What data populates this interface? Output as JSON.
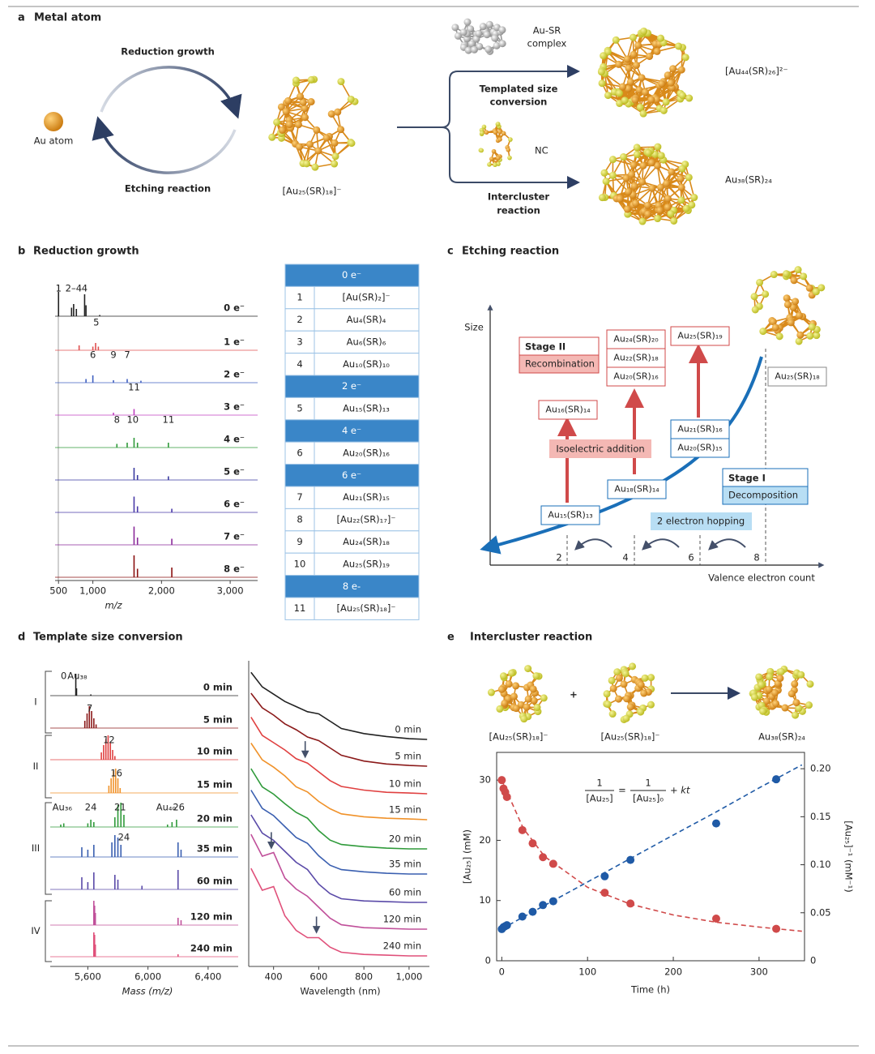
{
  "figure": {
    "a": {
      "label": "a",
      "title": "Metal atom",
      "reduction": "Reduction growth",
      "etching": "Etching reaction",
      "au_atom": "Au atom",
      "au25": "[Au₂₅(SR)₁₈]⁻",
      "complex": [
        "Au-SR",
        "complex"
      ],
      "templated": [
        "Templated size",
        "conversion"
      ],
      "nc": "NC",
      "intercluster": [
        "Intercluster",
        "reaction"
      ],
      "au44": "[Au₄₄(SR)₂₆]²⁻",
      "au38": "Au₃₈(SR)₂₄"
    },
    "b": {
      "label": "b",
      "title": "Reduction growth",
      "table": [
        {
          "header": "0 e⁻",
          "rows": [
            [
              "1",
              "[Au(SR)₂]⁻"
            ],
            [
              "2",
              "Au₄(SR)₄"
            ],
            [
              "3",
              "Au₆(SR)₆"
            ],
            [
              "4",
              "Au₁₀(SR)₁₀"
            ]
          ]
        },
        {
          "header": "2 e⁻",
          "rows": [
            [
              "5",
              "Au₁₅(SR)₁₃"
            ]
          ]
        },
        {
          "header": "4 e⁻",
          "rows": [
            [
              "6",
              "Au₂₀(SR)₁₆"
            ]
          ]
        },
        {
          "header": "6 e⁻",
          "rows": [
            [
              "7",
              "Au₂₁(SR)₁₅"
            ],
            [
              "8",
              "[Au₂₂(SR)₁₇]⁻"
            ],
            [
              "9",
              "Au₂₄(SR)₁₈"
            ],
            [
              "10",
              "Au₂₅(SR)₁₉"
            ]
          ]
        },
        {
          "header": "8 e-",
          "rows": [
            [
              "11",
              "[Au₂₅(SR)₁₈]⁻"
            ]
          ]
        }
      ]
    },
    "c": {
      "label": "c",
      "title": "Etching reaction",
      "ylabel": "Size",
      "xlabel": "Valence electron count",
      "xticks": [
        "2",
        "4",
        "6",
        "8"
      ],
      "stage2": "Stage II",
      "recombination": "Recombination",
      "stage1": "Stage I",
      "decomposition": "Decomposition",
      "isoelectric": "Isoelectric addition",
      "hopping": "2 electron hopping",
      "boxes": [
        {
          "lines": [
            "Au₁₅(SR)₁₃"
          ],
          "kind": "blue"
        },
        {
          "lines": [
            "Au₁₆(SR)₁₄"
          ],
          "kind": "red"
        },
        {
          "lines": [
            "Au₁₈(SR)₁₄"
          ],
          "kind": "blue"
        },
        {
          "lines": [
            "Au₂₄(SR)₂₀",
            "Au₂₂(SR)₁₈",
            "Au₂₀(SR)₁₆"
          ],
          "kind": "red"
        },
        {
          "lines": [
            "Au₂₅(SR)₁₉"
          ],
          "kind": "red"
        },
        {
          "lines": [
            "Au₂₁(SR)₁₆",
            "Au₂₀(SR)₁₅"
          ],
          "kind": "blue"
        },
        {
          "lines": [
            "Au₂₅(SR)₁₈"
          ],
          "kind": "grey"
        }
      ]
    },
    "d": {
      "label": "d",
      "title": "Template size conversion",
      "groups": [
        "I",
        "II",
        "III",
        "IV"
      ]
    },
    "e": {
      "label": "e",
      "title": "Intercluster reaction",
      "molecules": [
        "[Au₂₅(SR)₁₈]⁻",
        "[Au₂₅(SR)₁₈]⁻",
        "Au₃₈(SR)₂₄"
      ],
      "plus": "+",
      "equation": {
        "num1": "1",
        "den1": "[Au₂₅]",
        "eq": "=",
        "num2": "1",
        "den2": "[Au₂₅]₀",
        "tail": "+ kt"
      }
    }
  },
  "chart_data": [
    {
      "type": "stacked-spectra",
      "xlabel": "m/z",
      "xlim": [
        450,
        3400
      ],
      "xticks": [
        500,
        {
          "value": 1000,
          "label": "1,000"
        },
        {
          "value": 2000,
          "label": "2,000"
        },
        {
          "value": 3000,
          "label": "3,000"
        }
      ],
      "series": [
        {
          "name": "0 e⁻",
          "color": "#222222",
          "x": [
            500,
            690,
            720,
            760,
            880,
            900,
            1100
          ],
          "values": [
            1.0,
            0.35,
            0.5,
            0.3,
            0.9,
            0.45,
            0.05
          ],
          "annotations": [
            {
              "text": "1",
              "x": 500
            },
            {
              "text": "2–4",
              "x": 720
            },
            {
              "text": "4",
              "x": 880
            }
          ]
        },
        {
          "name": "1 e⁻",
          "color": "#e05050",
          "x": [
            800,
            1000,
            1040,
            1080
          ],
          "values": [
            0.2,
            0.15,
            0.3,
            0.15
          ],
          "annotations": [
            {
              "text": "5",
              "x": 1050
            }
          ]
        },
        {
          "name": "2 e⁻",
          "color": "#4060c0",
          "x": [
            900,
            1000,
            1300,
            1500,
            1700
          ],
          "values": [
            0.15,
            0.3,
            0.1,
            0.15,
            0.08
          ],
          "annotations": [
            {
              "text": "6",
              "x": 1000
            },
            {
              "text": "9",
              "x": 1300
            },
            {
              "text": "7",
              "x": 1500
            }
          ]
        },
        {
          "name": "3 e⁻",
          "color": "#c040c0",
          "x": [
            1300,
            1600
          ],
          "values": [
            0.1,
            0.25
          ],
          "annotations": [
            {
              "text": "11",
              "x": 1600
            }
          ]
        },
        {
          "name": "4 e⁻",
          "color": "#2f9a3a",
          "x": [
            1350,
            1500,
            1600,
            1650,
            2100
          ],
          "values": [
            0.15,
            0.2,
            0.4,
            0.2,
            0.2
          ],
          "annotations": [
            {
              "text": "8",
              "x": 1350
            },
            {
              "text": "10",
              "x": 1580
            },
            {
              "text": "11",
              "x": 2100
            }
          ]
        },
        {
          "name": "5 e⁻",
          "color": "#3a3aa0",
          "x": [
            1600,
            1650,
            2100
          ],
          "values": [
            0.5,
            0.2,
            0.15
          ]
        },
        {
          "name": "6 e⁻",
          "color": "#4a3aa8",
          "x": [
            1600,
            1650,
            2150
          ],
          "values": [
            0.65,
            0.25,
            0.15
          ]
        },
        {
          "name": "7 e⁻",
          "color": "#8a2a9a",
          "x": [
            1600,
            1650,
            2150
          ],
          "values": [
            0.75,
            0.3,
            0.25
          ]
        },
        {
          "name": "8 e⁻",
          "color": "#8a1010",
          "x": [
            1600,
            1650,
            2150
          ],
          "values": [
            0.9,
            0.35,
            0.4
          ]
        }
      ]
    },
    {
      "type": "stacked-spectra",
      "xlabel": "Mass (m/z)",
      "xlim": [
        5350,
        6600
      ],
      "xticks": [
        {
          "value": 5600,
          "label": "5,600"
        },
        {
          "value": 6000,
          "label": "6,000"
        },
        {
          "value": 6400,
          "label": "6,400"
        }
      ],
      "series": [
        {
          "name": "0 min",
          "color": "#222222",
          "x": [
            5520,
            5525,
            5620
          ],
          "values": [
            0.9,
            0.3,
            0.05
          ],
          "annotations": [
            {
              "text": "0",
              "x": 5440
            },
            {
              "text": "Au₃₈",
              "x": 5530
            }
          ]
        },
        {
          "name": "5 min",
          "color": "#8b1a1a",
          "x": [
            5580,
            5595,
            5610,
            5625,
            5640,
            5655
          ],
          "values": [
            0.3,
            0.6,
            0.9,
            0.7,
            0.4,
            0.15
          ],
          "annotations": [
            {
              "text": "7",
              "x": 5612
            }
          ]
        },
        {
          "name": "10 min",
          "color": "#e04040",
          "x": [
            5690,
            5705,
            5720,
            5735,
            5750,
            5765,
            5780
          ],
          "values": [
            0.3,
            0.6,
            0.85,
            1.0,
            0.7,
            0.4,
            0.15
          ],
          "annotations": [
            {
              "text": "12",
              "x": 5740
            }
          ]
        },
        {
          "name": "15 min",
          "color": "#f0922a",
          "x": [
            5740,
            5755,
            5770,
            5785,
            5800,
            5815
          ],
          "values": [
            0.3,
            0.6,
            0.9,
            1.0,
            0.6,
            0.2
          ],
          "annotations": [
            {
              "text": "16",
              "x": 5790
            }
          ]
        },
        {
          "name": "20 min",
          "color": "#2f9a3a",
          "x": [
            5420,
            5440,
            5600,
            5620,
            5640,
            5780,
            5800,
            5820,
            5840,
            6130,
            6160,
            6190
          ],
          "values": [
            0.1,
            0.15,
            0.15,
            0.3,
            0.2,
            0.4,
            0.9,
            1.0,
            0.5,
            0.1,
            0.2,
            0.3
          ],
          "annotations": [
            {
              "text": "Au₃₆",
              "x": 5430
            },
            {
              "text": "24",
              "x": 5620
            },
            {
              "text": "21",
              "x": 5815
            },
            {
              "text": "Au₄₀",
              "x": 6120
            },
            {
              "text": "26",
              "x": 6205
            }
          ]
        },
        {
          "name": "35 min",
          "color": "#3a5fb0",
          "x": [
            5560,
            5600,
            5640,
            5760,
            5780,
            5800,
            5820,
            6200,
            6220
          ],
          "values": [
            0.4,
            0.3,
            0.5,
            0.6,
            0.9,
            0.8,
            0.5,
            0.6,
            0.3
          ],
          "annotations": [
            {
              "text": "24",
              "x": 5840
            }
          ]
        },
        {
          "name": "60 min",
          "color": "#5a4aa8",
          "x": [
            5560,
            5600,
            5640,
            5780,
            5800,
            5960,
            6200
          ],
          "values": [
            0.5,
            0.3,
            0.7,
            0.6,
            0.4,
            0.15,
            0.8
          ]
        },
        {
          "name": "120 min",
          "color": "#c0509a",
          "x": [
            5640,
            5645,
            5650,
            6200,
            6220
          ],
          "values": [
            1.0,
            0.8,
            0.5,
            0.3,
            0.2
          ]
        },
        {
          "name": "240 min",
          "color": "#e0507a",
          "x": [
            5640,
            5645,
            5650,
            6200
          ],
          "values": [
            1.0,
            0.9,
            0.5,
            0.1
          ]
        }
      ]
    },
    {
      "type": "stacked-lines",
      "xlabel": "Wavelength (nm)",
      "xlim": [
        290,
        1090
      ],
      "xticks": [
        400,
        600,
        800,
        {
          "value": 1000,
          "label": "1,000"
        }
      ],
      "x": [
        300,
        350,
        400,
        450,
        500,
        550,
        600,
        650,
        700,
        800,
        900,
        1000,
        1080
      ],
      "series": [
        {
          "name": "0 min",
          "color": "#222222",
          "values": [
            0.92,
            0.72,
            0.62,
            0.52,
            0.45,
            0.38,
            0.35,
            0.25,
            0.15,
            0.08,
            0.04,
            0.01,
            0
          ]
        },
        {
          "name": "5 min",
          "color": "#8b1a1a",
          "values": [
            1.0,
            0.8,
            0.7,
            0.58,
            0.5,
            0.4,
            0.35,
            0.25,
            0.15,
            0.07,
            0.03,
            0.01,
            0
          ]
        },
        {
          "name": "10 min",
          "color": "#e04040",
          "values": [
            1.05,
            0.8,
            0.7,
            0.6,
            0.48,
            0.42,
            0.3,
            0.18,
            0.1,
            0.05,
            0.02,
            0.01,
            0
          ],
          "arrow_x": 540
        },
        {
          "name": "15 min",
          "color": "#f0922a",
          "values": [
            1.05,
            0.82,
            0.72,
            0.6,
            0.45,
            0.38,
            0.25,
            0.15,
            0.08,
            0.04,
            0.02,
            0.01,
            0
          ]
        },
        {
          "name": "20 min",
          "color": "#2f9a3a",
          "values": [
            1.1,
            0.85,
            0.75,
            0.62,
            0.5,
            0.42,
            0.25,
            0.12,
            0.06,
            0.03,
            0.01,
            0,
            0
          ]
        },
        {
          "name": "35 min",
          "color": "#3a5fb0",
          "values": [
            1.15,
            0.9,
            0.8,
            0.65,
            0.5,
            0.42,
            0.25,
            0.12,
            0.06,
            0.03,
            0.01,
            0,
            0
          ]
        },
        {
          "name": "60 min",
          "color": "#5a4aa8",
          "values": [
            1.2,
            0.95,
            0.85,
            0.7,
            0.55,
            0.45,
            0.25,
            0.12,
            0.05,
            0.02,
            0.01,
            0,
            0
          ]
        },
        {
          "name": "120 min",
          "color": "#c0509a",
          "values": [
            1.3,
            1.0,
            1.05,
            0.7,
            0.55,
            0.45,
            0.3,
            0.15,
            0.06,
            0.02,
            0.01,
            0,
            0
          ],
          "arrow_x": 390
        },
        {
          "name": "240 min",
          "color": "#e0507a",
          "values": [
            1.2,
            0.9,
            0.95,
            0.55,
            0.35,
            0.25,
            0.25,
            0.12,
            0.05,
            0.02,
            0.01,
            0,
            0
          ],
          "arrow_x": 590
        }
      ]
    },
    {
      "type": "dual-scatter",
      "xlabel": "Time (h)",
      "ylabel": "[Au₂₅] (mM)",
      "y2label": "[Au₂₅]⁻¹ (mM⁻¹)",
      "xlim": [
        -6,
        353
      ],
      "xticks": [
        0,
        100,
        200,
        300
      ],
      "ylim": [
        0,
        34.6
      ],
      "yticks": [
        0,
        10,
        20,
        30
      ],
      "y2lim": [
        0,
        0.217
      ],
      "y2ticks": [
        0,
        0.05,
        {
          "value": 0.1,
          "label": "0.10"
        },
        0.15,
        {
          "value": 0.2,
          "label": "0.20"
        }
      ],
      "series": [
        {
          "color": "#d04a4a",
          "style": "points",
          "x": [
            0,
            2,
            4,
            6,
            24,
            36,
            48,
            60,
            120,
            150,
            250,
            320
          ],
          "values": [
            30,
            28.6,
            28,
            27.2,
            21.7,
            19.5,
            17.2,
            16.1,
            11.3,
            9.5,
            7,
            5.3
          ]
        },
        {
          "color": "#1f5aa6",
          "style": "points",
          "axis": "y2",
          "x": [
            0,
            2,
            4,
            6,
            24,
            36,
            48,
            60,
            120,
            150,
            250,
            320
          ],
          "values": [
            0.033,
            0.035,
            0.036,
            0.037,
            0.046,
            0.051,
            0.058,
            0.062,
            0.088,
            0.105,
            0.143,
            0.189
          ]
        },
        {
          "color": "#d04a4a",
          "style": "dashed",
          "x": [
            0,
            25,
            50,
            100,
            150,
            200,
            250,
            300,
            350
          ],
          "values": [
            30,
            22,
            17.3,
            12.2,
            9.4,
            7.6,
            6.4,
            5.6,
            4.9
          ]
        },
        {
          "color": "#1f5aa6",
          "style": "dashed",
          "axis": "y2",
          "x": [
            0,
            25,
            50,
            100,
            150,
            200,
            250,
            300,
            350
          ],
          "values": [
            0.0333,
            0.0455,
            0.0577,
            0.0821,
            0.1065,
            0.131,
            0.155,
            0.18,
            0.204
          ]
        }
      ]
    }
  ]
}
